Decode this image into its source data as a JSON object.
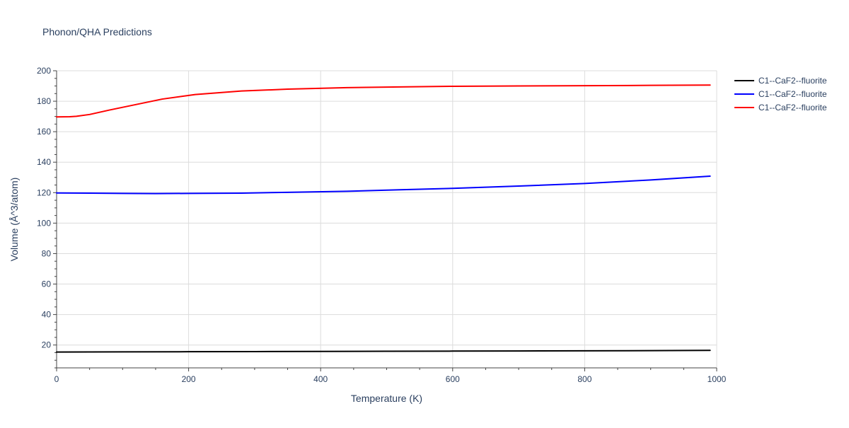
{
  "chart_data": {
    "type": "line",
    "title": "Phonon/QHA Predictions",
    "xlabel": "Temperature (K)",
    "ylabel": "Volume (Å^3/atom)",
    "xlim": [
      0,
      1000
    ],
    "ylim": [
      5,
      200
    ],
    "x_ticks": [
      0,
      200,
      400,
      600,
      800,
      1000
    ],
    "y_ticks": [
      20,
      40,
      60,
      80,
      100,
      120,
      140,
      160,
      180,
      200
    ],
    "grid": true,
    "legend_position": "top-right",
    "series": [
      {
        "name": "C1--CaF2--fluorite",
        "color": "#000000",
        "x": [
          0,
          100,
          200,
          300,
          400,
          500,
          600,
          700,
          800,
          900,
          990
        ],
        "y": [
          15.4,
          15.5,
          15.6,
          15.7,
          15.8,
          15.9,
          16.0,
          16.1,
          16.2,
          16.3,
          16.5
        ]
      },
      {
        "name": "C1--CaF2--fluorite",
        "color": "#0000ff",
        "x": [
          0,
          50,
          100,
          150,
          200,
          280,
          350,
          440,
          520,
          600,
          700,
          800,
          900,
          990
        ],
        "y": [
          119.8,
          119.7,
          119.5,
          119.4,
          119.5,
          119.7,
          120.2,
          120.9,
          121.9,
          122.8,
          124.3,
          126.0,
          128.3,
          130.8
        ]
      },
      {
        "name": "C1--CaF2--fluorite",
        "color": "#ff0000",
        "x": [
          0,
          20,
          30,
          50,
          80,
          120,
          160,
          210,
          280,
          350,
          440,
          520,
          600,
          700,
          800,
          900,
          990
        ],
        "y": [
          169.7,
          169.8,
          170.1,
          171.3,
          174.2,
          177.8,
          181.4,
          184.4,
          186.7,
          187.9,
          188.9,
          189.4,
          189.8,
          190.0,
          190.2,
          190.4,
          190.6
        ]
      }
    ]
  }
}
